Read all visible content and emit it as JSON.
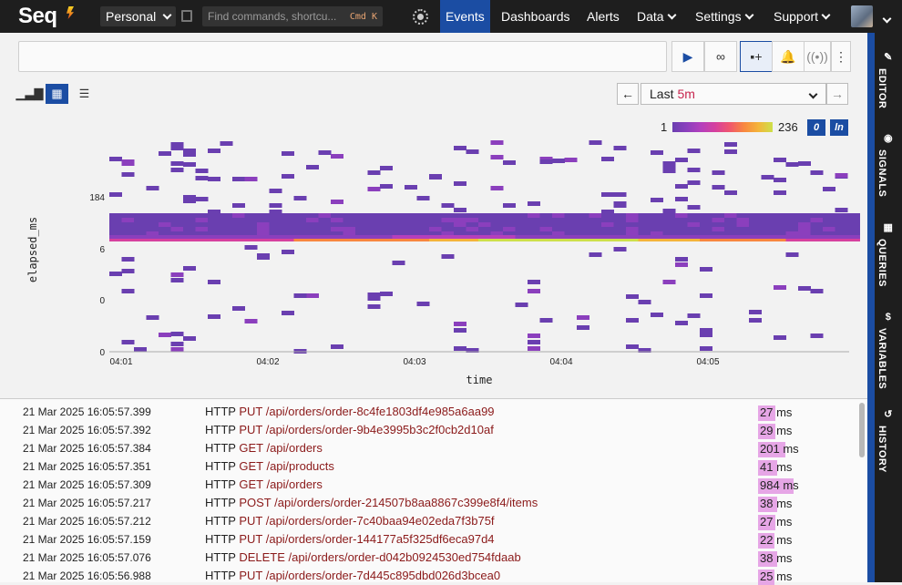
{
  "header": {
    "logo_text": "Seq",
    "workspace": "Personal",
    "command_placeholder": "Find commands, shortcu...",
    "command_shortcut": "Cmd K",
    "nav": [
      {
        "label": "Events",
        "active": true,
        "dropdown": false
      },
      {
        "label": "Dashboards",
        "active": false,
        "dropdown": false
      },
      {
        "label": "Alerts",
        "active": false,
        "dropdown": false
      },
      {
        "label": "Data",
        "active": false,
        "dropdown": true
      },
      {
        "label": "Settings",
        "active": false,
        "dropdown": true
      },
      {
        "label": "Support",
        "active": false,
        "dropdown": true
      }
    ]
  },
  "toolbar": {
    "search_value": "",
    "time_range_prefix": "Last",
    "time_range_value": "5m"
  },
  "side_tabs": [
    {
      "label": "EDITOR",
      "icon": "pencil-icon"
    },
    {
      "label": "SIGNALS",
      "icon": "signal-icon"
    },
    {
      "label": "QUERIES",
      "icon": "grid-icon"
    },
    {
      "label": "VARIABLES",
      "icon": "dollar-icon"
    },
    {
      "label": "HISTORY",
      "icon": "history-icon"
    }
  ],
  "chart_data": {
    "type": "heatmap",
    "xlabel": "time",
    "ylabel": "elapsed_ms",
    "x_ticks": [
      "04:01",
      "04:02",
      "04:03",
      "04:04",
      "04:05"
    ],
    "y_ticks": [
      "0",
      "0",
      "6",
      "184"
    ],
    "legend_min": "1",
    "legend_max": "236",
    "legend_buttons": [
      "0",
      "ln"
    ],
    "colors": [
      "#6a3fb0",
      "#8b3fbd",
      "#b43fbd",
      "#d6409e",
      "#f0566e",
      "#f8873f",
      "#f4b43a",
      "#cde04a"
    ]
  },
  "events": [
    {
      "timestamp": "21 Mar 2025  16:05:57.399",
      "protocol": "HTTP",
      "method": "PUT",
      "path": "/api/orders/order-8c4fe1803df4e985a6aa99",
      "duration": "27",
      "unit": "ms"
    },
    {
      "timestamp": "21 Mar 2025  16:05:57.392",
      "protocol": "HTTP",
      "method": "PUT",
      "path": "/api/orders/order-9b4e3995b3c2f0cb2d10af",
      "duration": "29",
      "unit": "ms"
    },
    {
      "timestamp": "21 Mar 2025  16:05:57.384",
      "protocol": "HTTP",
      "method": "GET",
      "path": "/api/orders",
      "duration": "201",
      "unit": "ms"
    },
    {
      "timestamp": "21 Mar 2025  16:05:57.351",
      "protocol": "HTTP",
      "method": "GET",
      "path": "/api/products",
      "duration": "41",
      "unit": "ms"
    },
    {
      "timestamp": "21 Mar 2025  16:05:57.309",
      "protocol": "HTTP",
      "method": "GET",
      "path": "/api/orders",
      "duration": "984",
      "unit": "ms"
    },
    {
      "timestamp": "21 Mar 2025  16:05:57.217",
      "protocol": "HTTP",
      "method": "POST",
      "path": "/api/orders/order-214507b8aa8867c399e8f4/items",
      "duration": "38",
      "unit": "ms"
    },
    {
      "timestamp": "21 Mar 2025  16:05:57.212",
      "protocol": "HTTP",
      "method": "PUT",
      "path": "/api/orders/order-7c40baa94e02eda7f3b75f",
      "duration": "27",
      "unit": "ms"
    },
    {
      "timestamp": "21 Mar 2025  16:05:57.159",
      "protocol": "HTTP",
      "method": "PUT",
      "path": "/api/orders/order-144177a5f325df6eca97d4",
      "duration": "22",
      "unit": "ms"
    },
    {
      "timestamp": "21 Mar 2025  16:05:57.076",
      "protocol": "HTTP",
      "method": "DELETE",
      "path": "/api/orders/order-d042b0924530ed754fdaab",
      "duration": "38",
      "unit": "ms"
    },
    {
      "timestamp": "21 Mar 2025  16:05:56.988",
      "protocol": "HTTP",
      "method": "PUT",
      "path": "/api/orders/order-7d445c895dbd026d3bcea0",
      "duration": "25",
      "unit": "ms"
    }
  ]
}
